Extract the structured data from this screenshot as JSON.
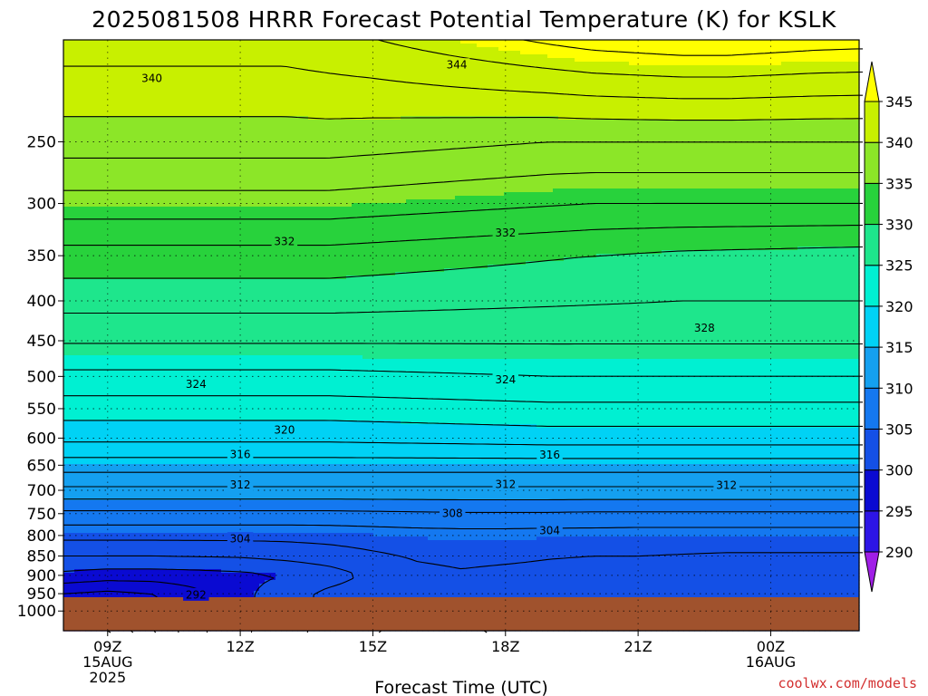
{
  "chart_data": {
    "type": "heatmap",
    "title": "2025081508 HRRR Forecast Potential Temperature (K) for KSLK",
    "xlabel": "Forecast Time (UTC)",
    "credit": "coolwx.com/models",
    "y_axis": {
      "scale": "log-pressure",
      "reversed": true,
      "range_hpa": [
        1060,
        185
      ],
      "ticks": [
        250,
        300,
        350,
        400,
        450,
        500,
        550,
        600,
        650,
        700,
        750,
        800,
        850,
        900,
        950,
        1000
      ]
    },
    "x_axis": {
      "range_hours": [
        8,
        14
      ],
      "ticks": [
        {
          "hour": 9,
          "lines": [
            "09Z",
            "15AUG",
            "2025"
          ]
        },
        {
          "hour": 12,
          "lines": [
            "12Z"
          ]
        },
        {
          "hour": 15,
          "lines": [
            "15Z"
          ]
        },
        {
          "hour": 18,
          "lines": [
            "18Z"
          ]
        },
        {
          "hour": 21,
          "lines": [
            "21Z"
          ]
        },
        {
          "hour": 24,
          "lines": [
            "00Z",
            "16AUG"
          ]
        }
      ]
    },
    "range_hours_full": [
      8,
      26
    ],
    "grid": true,
    "surface_pressure_hpa": 960,
    "surface_color": "#a0522d",
    "colorbar": {
      "levels": [
        290,
        295,
        300,
        305,
        310,
        315,
        320,
        325,
        330,
        335,
        340,
        345
      ],
      "colors": [
        "#a01ee6",
        "#2d14e6",
        "#0a0ad2",
        "#1450e6",
        "#1478f0",
        "#14a0f0",
        "#00d2f5",
        "#00f0d2",
        "#1ee68c",
        "#28d23c",
        "#8ce628",
        "#c8f000",
        "#ffff00"
      ],
      "extend": "both"
    },
    "theta_profiles": [
      {
        "pressure": 1000,
        "theta": [
          293,
          293,
          295,
          297.5,
          299.5,
          301.2,
          302.5,
          303.5,
          304,
          303.8,
          303.5,
          303.2,
          303,
          302.7,
          302.5,
          302.5,
          302.4,
          302.3,
          302.3
        ]
      },
      {
        "pressure": 950,
        "theta": [
          296,
          295.5,
          296,
          297.5,
          299.5,
          301,
          302.5,
          303.2,
          303.5,
          303.4,
          303.3,
          303.1,
          303,
          302.8,
          302.6,
          302.5,
          302.5,
          302.4,
          302.4
        ]
      },
      {
        "pressure": 900,
        "theta": [
          299.5,
          299,
          299,
          299.2,
          299.5,
          300,
          301,
          302.5,
          303.5,
          303.8,
          303.6,
          303.5,
          303.4,
          303.3,
          303.2,
          303.1,
          303,
          303,
          303
        ]
      },
      {
        "pressure": 850,
        "theta": [
          302,
          302,
          302,
          302.1,
          302.2,
          302.6,
          303.1,
          303.7,
          304.2,
          304.4,
          304.3,
          304.1,
          304,
          304,
          303.9,
          303.8,
          303.8,
          303.8,
          303.8
        ]
      },
      {
        "pressure": 800,
        "theta": [
          304.6,
          304.6,
          304.6,
          304.6,
          304.6,
          304.6,
          304.7,
          304.9,
          305.1,
          305.2,
          305.2,
          305.1,
          305.1,
          305,
          305,
          305,
          305,
          305,
          305
        ]
      },
      {
        "pressure": 750,
        "theta": [
          307.5,
          307.5,
          307.5,
          307.5,
          307.5,
          307.5,
          307.5,
          307.6,
          307.7,
          307.8,
          307.8,
          307.8,
          307.7,
          307.7,
          307.7,
          307.7,
          307.7,
          307.7,
          307.7
        ]
      },
      {
        "pressure": 700,
        "theta": [
          311.5,
          311.5,
          311.5,
          311.5,
          311.5,
          311.5,
          311.5,
          311.5,
          311.5,
          311.5,
          311.5,
          311.5,
          311.5,
          311.5,
          311.5,
          311.5,
          311.5,
          311.5,
          311.5
        ]
      },
      {
        "pressure": 650,
        "theta": [
          315,
          315,
          315,
          315,
          315,
          315,
          315,
          315,
          315,
          315,
          315,
          315,
          315,
          315,
          315,
          315,
          315,
          315,
          315
        ]
      },
      {
        "pressure": 600,
        "theta": [
          318.5,
          318.5,
          318.5,
          318.5,
          318.5,
          318.5,
          318.5,
          318.6,
          318.7,
          318.8,
          318.9,
          319,
          319,
          319,
          319,
          319,
          319,
          319,
          319
        ]
      },
      {
        "pressure": 550,
        "theta": [
          321,
          321,
          321,
          321,
          321,
          321,
          321,
          321.1,
          321.2,
          321.3,
          321.4,
          321.5,
          321.5,
          321.5,
          321.5,
          321.5,
          321.5,
          321.5,
          321.5
        ]
      },
      {
        "pressure": 500,
        "theta": [
          323.5,
          323.5,
          323.5,
          323.5,
          323.5,
          323.5,
          323.5,
          323.6,
          323.7,
          323.8,
          323.9,
          324,
          324,
          324,
          324,
          324,
          324,
          324,
          324
        ]
      },
      {
        "pressure": 450,
        "theta": [
          326.2,
          326.2,
          326.2,
          326.2,
          326.2,
          326.2,
          326.2,
          326.2,
          326.2,
          326.2,
          326.2,
          326.2,
          326.2,
          326.2,
          326.2,
          326.2,
          326.2,
          326.2,
          326.2
        ]
      },
      {
        "pressure": 400,
        "theta": [
          328.8,
          328.8,
          328.8,
          328.8,
          328.8,
          328.8,
          328.8,
          328.7,
          328.6,
          328.5,
          328.4,
          328.3,
          328.2,
          328.1,
          328,
          328,
          328,
          328,
          328
        ]
      },
      {
        "pressure": 350,
        "theta": [
          331.2,
          331.2,
          331.2,
          331.2,
          331.2,
          331.2,
          331.2,
          331,
          330.8,
          330.6,
          330.4,
          330.2,
          330,
          329.8,
          329.6,
          329.5,
          329.4,
          329.3,
          329.2
        ]
      },
      {
        "pressure": 300,
        "theta": [
          335.2,
          335.2,
          335.2,
          335.2,
          335.2,
          335.2,
          335.2,
          335,
          334.8,
          334.6,
          334.4,
          334.2,
          334,
          334,
          334,
          334,
          334,
          334,
          334
        ]
      },
      {
        "pressure": 250,
        "theta": [
          339,
          339,
          339,
          339,
          339,
          339,
          339,
          338.8,
          338.6,
          338.4,
          338.2,
          338,
          338,
          338,
          338,
          338,
          338,
          338,
          338
        ]
      },
      {
        "pressure": 200,
        "theta": [
          342,
          342,
          342,
          342,
          342,
          342,
          342.3,
          342.6,
          343,
          343.4,
          343.8,
          344.2,
          344.6,
          344.8,
          345,
          345,
          344.8,
          344.6,
          344.5
        ]
      }
    ],
    "contour_interval": 2,
    "contour_labels": [
      {
        "value": 340,
        "hour": 10,
        "pressure": 207
      },
      {
        "value": 344,
        "hour": 16.9,
        "pressure": 199
      },
      {
        "value": 332,
        "hour": 13,
        "pressure": 335
      },
      {
        "value": 332,
        "hour": 18,
        "pressure": 327
      },
      {
        "value": 328,
        "hour": 22.5,
        "pressure": 433
      },
      {
        "value": 324,
        "hour": 11,
        "pressure": 511
      },
      {
        "value": 324,
        "hour": 18,
        "pressure": 504
      },
      {
        "value": 320,
        "hour": 13,
        "pressure": 585
      },
      {
        "value": 316,
        "hour": 12,
        "pressure": 629
      },
      {
        "value": 316,
        "hour": 19,
        "pressure": 630
      },
      {
        "value": 312,
        "hour": 12,
        "pressure": 688
      },
      {
        "value": 312,
        "hour": 18,
        "pressure": 687
      },
      {
        "value": 312,
        "hour": 23,
        "pressure": 689
      },
      {
        "value": 308,
        "hour": 16.8,
        "pressure": 748
      },
      {
        "value": 304,
        "hour": 19,
        "pressure": 788
      },
      {
        "value": 304,
        "hour": 12,
        "pressure": 807
      },
      {
        "value": 292,
        "hour": 11,
        "pressure": 952
      }
    ]
  }
}
